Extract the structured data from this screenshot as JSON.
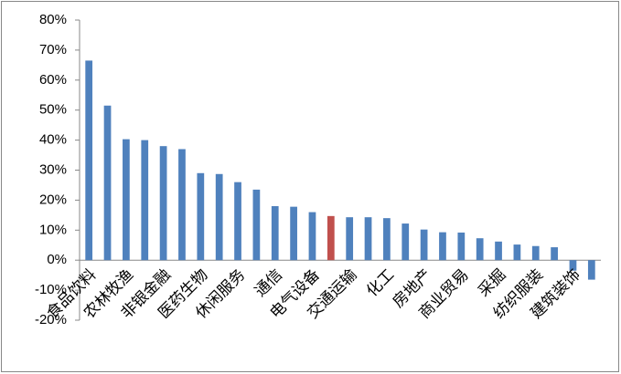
{
  "chart_data": {
    "type": "bar",
    "categories": [
      "食品饮料",
      null,
      "农林牧渔",
      null,
      "非银金融",
      null,
      "医药生物",
      null,
      "休闲服务",
      null,
      "通信",
      null,
      "电气设备",
      null,
      "交通运输",
      null,
      "化工",
      null,
      "房地产",
      null,
      "商业贸易",
      null,
      "采掘",
      null,
      "纺织服装",
      null,
      "建筑装饰",
      null
    ],
    "values": [
      66.5,
      51.5,
      40.3,
      40,
      38,
      37,
      29,
      28.7,
      26,
      23.5,
      18,
      17.8,
      16,
      14.7,
      14.3,
      14.3,
      14,
      12.2,
      10.2,
      9.3,
      9.2,
      7.3,
      6.2,
      5.2,
      4.7,
      4.3,
      -3.5,
      -6.5
    ],
    "colors": [
      "#4f81bd",
      "#4f81bd",
      "#4f81bd",
      "#4f81bd",
      "#4f81bd",
      "#4f81bd",
      "#4f81bd",
      "#4f81bd",
      "#4f81bd",
      "#4f81bd",
      "#4f81bd",
      "#4f81bd",
      "#4f81bd",
      "#c0504d",
      "#4f81bd",
      "#4f81bd",
      "#4f81bd",
      "#4f81bd",
      "#4f81bd",
      "#4f81bd",
      "#4f81bd",
      "#4f81bd",
      "#4f81bd",
      "#4f81bd",
      "#4f81bd",
      "#4f81bd",
      "#4f81bd",
      "#4f81bd"
    ],
    "ylim": [
      -20,
      80
    ],
    "yticks": [
      {
        "value": -20,
        "label": "-20%"
      },
      {
        "value": -10,
        "label": "-10%"
      },
      {
        "value": 0,
        "label": "0%"
      },
      {
        "value": 10,
        "label": "10%"
      },
      {
        "value": 20,
        "label": "20%"
      },
      {
        "value": 30,
        "label": "30%"
      },
      {
        "value": 40,
        "label": "40%"
      },
      {
        "value": 50,
        "label": "50%"
      },
      {
        "value": 60,
        "label": "60%"
      },
      {
        "value": 70,
        "label": "70%"
      },
      {
        "value": 80,
        "label": "80%"
      }
    ],
    "grid": false
  }
}
